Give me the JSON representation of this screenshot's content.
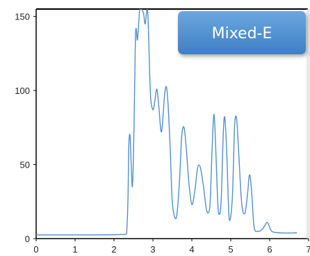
{
  "chart_data": {
    "type": "line",
    "title": "",
    "badge": "Mixed-E",
    "xlabel": "",
    "ylabel": "",
    "xlim": [
      0,
      7
    ],
    "ylim": [
      0,
      155
    ],
    "x_ticks": [
      0,
      1,
      2,
      3,
      4,
      5,
      6,
      7
    ],
    "y_ticks": [
      0,
      50,
      100,
      150
    ],
    "x_tick_labels": [
      "0",
      "1",
      "2",
      "3",
      "4",
      "5",
      "6",
      "7"
    ],
    "y_tick_labels": [
      "0",
      "50",
      "100",
      "150"
    ],
    "grid": false,
    "legend": "none",
    "series_color": "#4f8fd0",
    "badge_color": "#4f8fd0",
    "series": [
      {
        "x": [
          0.0,
          0.5,
          1.0,
          1.5,
          2.0,
          2.2,
          2.3,
          2.33,
          2.36,
          2.38,
          2.41,
          2.44,
          2.47,
          2.5,
          2.53,
          2.55,
          2.57,
          2.6,
          2.63,
          2.66,
          2.68,
          2.71,
          2.76,
          2.8,
          2.86,
          2.9,
          2.94,
          3.0,
          3.05,
          3.1,
          3.15,
          3.22,
          3.3,
          3.35,
          3.4,
          3.45,
          3.5,
          3.6,
          3.68,
          3.74,
          3.8,
          3.86,
          3.92,
          4.0,
          4.08,
          4.15,
          4.22,
          4.3,
          4.38,
          4.46,
          4.52,
          4.57,
          4.62,
          4.68,
          4.75,
          4.81,
          4.85,
          4.9,
          4.96,
          5.04,
          5.1,
          5.15,
          5.2,
          5.28,
          5.36,
          5.43,
          5.48,
          5.53,
          5.6,
          5.7,
          5.8,
          5.88,
          5.93,
          5.98,
          6.05,
          6.2,
          6.4,
          6.6,
          6.7
        ],
        "y": [
          2.5,
          2.5,
          2.5,
          2.5,
          2.6,
          2.8,
          3.0,
          6.0,
          28.0,
          62.0,
          70.0,
          52.0,
          35.0,
          55.0,
          102.0,
          135.0,
          142.0,
          134.0,
          144.0,
          155.0,
          155.0,
          155.0,
          152.0,
          145.0,
          155.0,
          127.0,
          96.0,
          87.0,
          93.0,
          101.0,
          90.0,
          72.0,
          97.0,
          102.0,
          86.0,
          57.0,
          24.0,
          14.0,
          38.0,
          69.0,
          75.0,
          60.0,
          39.0,
          23.0,
          33.0,
          48.0,
          48.0,
          35.0,
          19.0,
          21.0,
          60.0,
          84.0,
          57.0,
          18.0,
          24.0,
          73.0,
          81.0,
          56.0,
          13.0,
          27.0,
          77.0,
          81.0,
          60.0,
          24.0,
          17.0,
          30.0,
          43.0,
          34.0,
          8.0,
          5.0,
          6.0,
          9.0,
          11.0,
          9.0,
          5.0,
          4.0,
          3.8,
          3.8,
          4.0
        ]
      }
    ]
  }
}
